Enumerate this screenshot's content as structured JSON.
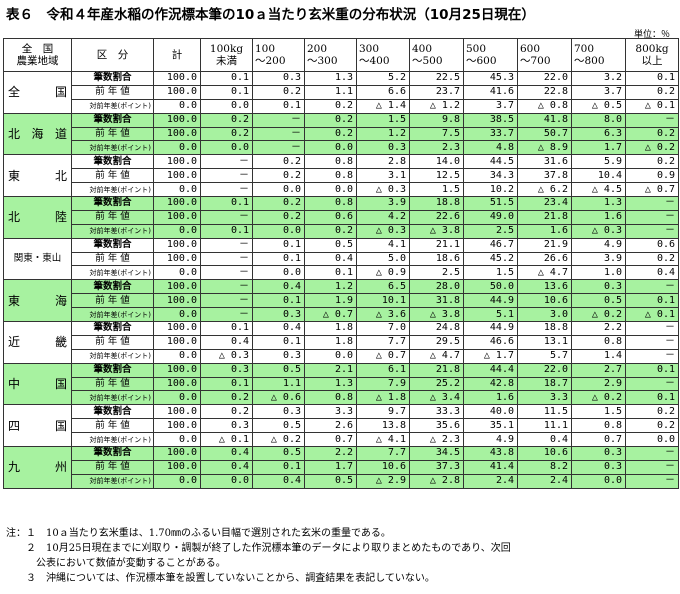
{
  "title": "表６　令和４年産水稲の作況標本筆の10ａ当たり玄米重の分布状況（10月25日現在）",
  "unit": "単位：％",
  "headers": {
    "region": "全　国\n農業地域",
    "kubun": "区　分",
    "total": "計",
    "bins": [
      "100kg\n未満",
      "100\n～200",
      "200\n～300",
      "300\n～400",
      "400\n～500",
      "500\n～600",
      "600\n～700",
      "700\n～800",
      "800kg\n以上"
    ]
  },
  "row_labels": [
    "筆数割合",
    "前 年 値",
    "対前年差(ポイント)"
  ],
  "regions": [
    {
      "name": "全　国",
      "green": false,
      "rows": [
        [
          "100.0",
          "0.1",
          "0.3",
          "1.3",
          "5.2",
          "22.5",
          "45.3",
          "22.0",
          "3.2",
          "0.1"
        ],
        [
          "100.0",
          "0.1",
          "0.2",
          "1.1",
          "6.6",
          "23.7",
          "41.6",
          "22.8",
          "3.7",
          "0.2"
        ],
        [
          "0.0",
          "0.0",
          "0.1",
          "0.2",
          "△ 1.4",
          "△ 1.2",
          "3.7",
          "△ 0.8",
          "△ 0.5",
          "△ 0.1"
        ]
      ]
    },
    {
      "name": "北海道",
      "green": true,
      "rows": [
        [
          "100.0",
          "0.2",
          "－",
          "0.2",
          "1.5",
          "9.8",
          "38.5",
          "41.8",
          "8.0",
          "－"
        ],
        [
          "100.0",
          "0.2",
          "－",
          "0.2",
          "1.2",
          "7.5",
          "33.7",
          "50.7",
          "6.3",
          "0.2"
        ],
        [
          "0.0",
          "0.0",
          "－",
          "0.0",
          "0.3",
          "2.3",
          "4.8",
          "△ 8.9",
          "1.7",
          "△ 0.2"
        ]
      ]
    },
    {
      "name": "東　北",
      "green": false,
      "rows": [
        [
          "100.0",
          "－",
          "0.2",
          "0.8",
          "2.8",
          "14.0",
          "44.5",
          "31.6",
          "5.9",
          "0.2"
        ],
        [
          "100.0",
          "－",
          "0.2",
          "0.8",
          "3.1",
          "12.5",
          "34.3",
          "37.8",
          "10.4",
          "0.9"
        ],
        [
          "0.0",
          "－",
          "0.0",
          "0.0",
          "△ 0.3",
          "1.5",
          "10.2",
          "△ 6.2",
          "△ 4.5",
          "△ 0.7"
        ]
      ]
    },
    {
      "name": "北　陸",
      "green": true,
      "rows": [
        [
          "100.0",
          "0.1",
          "0.2",
          "0.8",
          "3.9",
          "18.8",
          "51.5",
          "23.4",
          "1.3",
          "－"
        ],
        [
          "100.0",
          "－",
          "0.2",
          "0.6",
          "4.2",
          "22.6",
          "49.0",
          "21.8",
          "1.6",
          "－"
        ],
        [
          "0.0",
          "0.1",
          "0.0",
          "0.2",
          "△ 0.3",
          "△ 3.8",
          "2.5",
          "1.6",
          "△ 0.3",
          "－"
        ]
      ]
    },
    {
      "name": "関東・東山",
      "green": false,
      "small": true,
      "rows": [
        [
          "100.0",
          "－",
          "0.1",
          "0.5",
          "4.1",
          "21.1",
          "46.7",
          "21.9",
          "4.9",
          "0.6"
        ],
        [
          "100.0",
          "－",
          "0.1",
          "0.4",
          "5.0",
          "18.6",
          "45.2",
          "26.6",
          "3.9",
          "0.2"
        ],
        [
          "0.0",
          "－",
          "0.0",
          "0.1",
          "△ 0.9",
          "2.5",
          "1.5",
          "△ 4.7",
          "1.0",
          "0.4"
        ]
      ]
    },
    {
      "name": "東　海",
      "green": true,
      "rows": [
        [
          "100.0",
          "－",
          "0.4",
          "1.2",
          "6.5",
          "28.0",
          "50.0",
          "13.6",
          "0.3",
          "－"
        ],
        [
          "100.0",
          "－",
          "0.1",
          "1.9",
          "10.1",
          "31.8",
          "44.9",
          "10.6",
          "0.5",
          "0.1"
        ],
        [
          "0.0",
          "－",
          "0.3",
          "△ 0.7",
          "△ 3.6",
          "△ 3.8",
          "5.1",
          "3.0",
          "△ 0.2",
          "△ 0.1"
        ]
      ]
    },
    {
      "name": "近　畿",
      "green": false,
      "rows": [
        [
          "100.0",
          "0.1",
          "0.4",
          "1.8",
          "7.0",
          "24.8",
          "44.9",
          "18.8",
          "2.2",
          "－"
        ],
        [
          "100.0",
          "0.4",
          "0.1",
          "1.8",
          "7.7",
          "29.5",
          "46.6",
          "13.1",
          "0.8",
          "－"
        ],
        [
          "0.0",
          "△ 0.3",
          "0.3",
          "0.0",
          "△ 0.7",
          "△ 4.7",
          "△ 1.7",
          "5.7",
          "1.4",
          "－"
        ]
      ]
    },
    {
      "name": "中　国",
      "green": true,
      "rows": [
        [
          "100.0",
          "0.3",
          "0.5",
          "2.1",
          "6.1",
          "21.8",
          "44.4",
          "22.0",
          "2.7",
          "0.1"
        ],
        [
          "100.0",
          "0.1",
          "1.1",
          "1.3",
          "7.9",
          "25.2",
          "42.8",
          "18.7",
          "2.9",
          "－"
        ],
        [
          "0.0",
          "0.2",
          "△ 0.6",
          "0.8",
          "△ 1.8",
          "△ 3.4",
          "1.6",
          "3.3",
          "△ 0.2",
          "0.1"
        ]
      ]
    },
    {
      "name": "四　国",
      "green": false,
      "rows": [
        [
          "100.0",
          "0.2",
          "0.3",
          "3.3",
          "9.7",
          "33.3",
          "40.0",
          "11.5",
          "1.5",
          "0.2"
        ],
        [
          "100.0",
          "0.3",
          "0.5",
          "2.6",
          "13.8",
          "35.6",
          "35.1",
          "11.1",
          "0.8",
          "0.2"
        ],
        [
          "0.0",
          "△ 0.1",
          "△ 0.2",
          "0.7",
          "△ 4.1",
          "△ 2.3",
          "4.9",
          "0.4",
          "0.7",
          "0.0"
        ]
      ]
    },
    {
      "name": "九　州",
      "green": true,
      "rows": [
        [
          "100.0",
          "0.4",
          "0.5",
          "2.2",
          "7.7",
          "34.5",
          "43.8",
          "10.6",
          "0.3",
          "－"
        ],
        [
          "100.0",
          "0.4",
          "0.1",
          "1.7",
          "10.6",
          "37.3",
          "41.4",
          "8.2",
          "0.3",
          "－"
        ],
        [
          "0.0",
          "0.0",
          "0.4",
          "0.5",
          "△ 2.9",
          "△ 2.8",
          "2.4",
          "2.4",
          "0.0",
          "－"
        ]
      ]
    }
  ],
  "notes": [
    "注：１　10ａ当たり玄米重は、1.70㎜のふるい目幅で選別された玄米の重量である。",
    "　　２　10月25日現在までに刈取り・調製が終了した作況標本筆のデータにより取りまとめたものであり、次回",
    "　　　公表において数値が変動することがある。",
    "　　３　沖縄については、作況標本筆を設置していないことから、調査結果を表記していない。"
  ]
}
